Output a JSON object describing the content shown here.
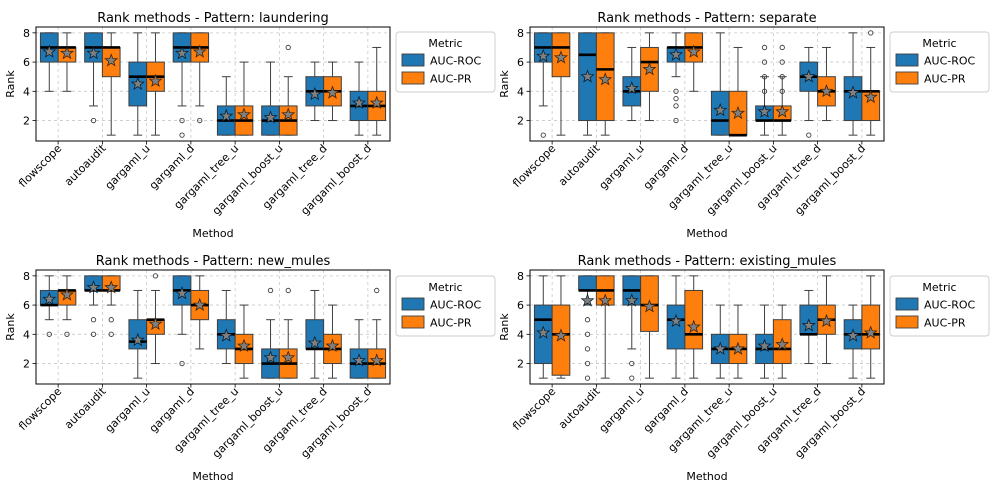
{
  "palette": {
    "roc": "#1f77b4",
    "pr": "#ff7f0e",
    "star": "#808080"
  },
  "chart_data": [
    {
      "type": "boxplot",
      "title": "Rank methods - Pattern: laundering",
      "xlabel": "Method",
      "ylabel": "Rank",
      "ylim": [
        0.6,
        8.4
      ],
      "yticks": [
        2,
        4,
        6,
        8
      ],
      "categories": [
        "flowscope",
        "autoaudit",
        "gargaml_u",
        "gargaml_d",
        "gargaml_tree_u",
        "gargaml_boost_u",
        "gargaml_tree_d",
        "gargaml_boost_d"
      ],
      "legend": {
        "title": "Metric",
        "entries": [
          "AUC-ROC",
          "AUC-PR"
        ]
      },
      "series": [
        {
          "name": "AUC-ROC",
          "color": "#1f77b4",
          "boxes": [
            {
              "wlo": 4,
              "q1": 6,
              "med": 7,
              "q3": 8,
              "whi": 8,
              "mean": 6.7,
              "out": []
            },
            {
              "wlo": 3,
              "q1": 6,
              "med": 7,
              "q3": 8,
              "whi": 8,
              "mean": 6.6,
              "out": [
                2
              ]
            },
            {
              "wlo": 1,
              "q1": 3,
              "med": 5,
              "q3": 6,
              "whi": 8,
              "mean": 4.5,
              "out": []
            },
            {
              "wlo": 3,
              "q1": 6,
              "med": 7,
              "q3": 8,
              "whi": 8,
              "mean": 6.6,
              "out": [
                2,
                1
              ]
            },
            {
              "wlo": 1,
              "q1": 1,
              "med": 2,
              "q3": 3,
              "whi": 5,
              "mean": 2.3,
              "out": []
            },
            {
              "wlo": 1,
              "q1": 1,
              "med": 2,
              "q3": 3,
              "whi": 6,
              "mean": 2.2,
              "out": []
            },
            {
              "wlo": 2,
              "q1": 3,
              "med": 4,
              "q3": 5,
              "whi": 6,
              "mean": 3.8,
              "out": []
            },
            {
              "wlo": 1,
              "q1": 2,
              "med": 3,
              "q3": 4,
              "whi": 6,
              "mean": 3.2,
              "out": []
            }
          ]
        },
        {
          "name": "AUC-PR",
          "color": "#ff7f0e",
          "boxes": [
            {
              "wlo": 4,
              "q1": 6,
              "med": 7,
              "q3": 7,
              "whi": 8,
              "mean": 6.6,
              "out": []
            },
            {
              "wlo": 1,
              "q1": 5,
              "med": 7,
              "q3": 7,
              "whi": 8,
              "mean": 6.1,
              "out": []
            },
            {
              "wlo": 1,
              "q1": 4,
              "med": 5,
              "q3": 6,
              "whi": 8,
              "mean": 4.7,
              "out": []
            },
            {
              "wlo": 3,
              "q1": 6,
              "med": 7,
              "q3": 8,
              "whi": 8,
              "mean": 6.7,
              "out": [
                2
              ]
            },
            {
              "wlo": 1,
              "q1": 1,
              "med": 2,
              "q3": 3,
              "whi": 6,
              "mean": 2.4,
              "out": []
            },
            {
              "wlo": 1,
              "q1": 1,
              "med": 2,
              "q3": 3,
              "whi": 5,
              "mean": 2.4,
              "out": [
                7
              ]
            },
            {
              "wlo": 2,
              "q1": 3,
              "med": 4,
              "q3": 5,
              "whi": 6,
              "mean": 3.9,
              "out": []
            },
            {
              "wlo": 1,
              "q1": 2,
              "med": 3,
              "q3": 4,
              "whi": 7,
              "mean": 3.2,
              "out": []
            }
          ]
        }
      ]
    },
    {
      "type": "boxplot",
      "title": "Rank methods - Pattern: separate",
      "xlabel": "Method",
      "ylabel": "Rank",
      "ylim": [
        0.6,
        8.4
      ],
      "yticks": [
        2,
        4,
        6,
        8
      ],
      "categories": [
        "flowscope",
        "autoaudit",
        "gargaml_u",
        "gargaml_d",
        "gargaml_tree_u",
        "gargaml_boost_u",
        "gargaml_tree_d",
        "gargaml_boost_d"
      ],
      "legend": {
        "title": "Metric",
        "entries": [
          "AUC-ROC",
          "AUC-PR"
        ]
      },
      "series": [
        {
          "name": "AUC-ROC",
          "color": "#1f77b4",
          "boxes": [
            {
              "wlo": 3,
              "q1": 6,
              "med": 7,
              "q3": 8,
              "whi": 8,
              "mean": 6.4,
              "out": [
                1
              ]
            },
            {
              "wlo": 1,
              "q1": 2,
              "med": 6.5,
              "q3": 8,
              "whi": 8,
              "mean": 5.0,
              "out": []
            },
            {
              "wlo": 2,
              "q1": 3,
              "med": 4,
              "q3": 5,
              "whi": 7,
              "mean": 4.2,
              "out": []
            },
            {
              "wlo": 5,
              "q1": 6,
              "med": 7,
              "q3": 7,
              "whi": 8,
              "mean": 6.5,
              "out": [
                4,
                3.5,
                3,
                2
              ]
            },
            {
              "wlo": 1,
              "q1": 1,
              "med": 2,
              "q3": 4,
              "whi": 8,
              "mean": 2.7,
              "out": []
            },
            {
              "wlo": 1,
              "q1": 2,
              "med": 2,
              "q3": 3,
              "whi": 5,
              "mean": 2.6,
              "out": [
                7,
                6,
                5,
                4
              ]
            },
            {
              "wlo": 2,
              "q1": 4,
              "med": 5,
              "q3": 6,
              "whi": 7,
              "mean": 5.0,
              "out": [
                1
              ]
            },
            {
              "wlo": 1,
              "q1": 2,
              "med": 4,
              "q3": 5,
              "whi": 8,
              "mean": 3.9,
              "out": []
            }
          ]
        },
        {
          "name": "AUC-PR",
          "color": "#ff7f0e",
          "boxes": [
            {
              "wlo": 1,
              "q1": 5,
              "med": 7,
              "q3": 8,
              "whi": 8,
              "mean": 6.3,
              "out": []
            },
            {
              "wlo": 1,
              "q1": 2,
              "med": 5.5,
              "q3": 8,
              "whi": 8,
              "mean": 4.8,
              "out": []
            },
            {
              "wlo": 2,
              "q1": 4,
              "med": 6,
              "q3": 7,
              "whi": 8,
              "mean": 5.5,
              "out": []
            },
            {
              "wlo": 4,
              "q1": 6,
              "med": 7,
              "q3": 8,
              "whi": 8,
              "mean": 6.7,
              "out": []
            },
            {
              "wlo": 1,
              "q1": 1,
              "med": 1,
              "q3": 4,
              "whi": 7,
              "mean": 2.5,
              "out": []
            },
            {
              "wlo": 1,
              "q1": 2,
              "med": 2,
              "q3": 3,
              "whi": 5,
              "mean": 2.6,
              "out": [
                7,
                6,
                5,
                4
              ]
            },
            {
              "wlo": 2,
              "q1": 3,
              "med": 4,
              "q3": 5,
              "whi": 7,
              "mean": 4.0,
              "out": []
            },
            {
              "wlo": 1,
              "q1": 2,
              "med": 4,
              "q3": 4,
              "whi": 7,
              "mean": 3.6,
              "out": [
                8
              ]
            }
          ]
        }
      ]
    },
    {
      "type": "boxplot",
      "title": "Rank methods - Pattern: new_mules",
      "xlabel": "Method",
      "ylabel": "Rank",
      "ylim": [
        0.6,
        8.4
      ],
      "yticks": [
        2,
        4,
        6,
        8
      ],
      "categories": [
        "flowscope",
        "autoaudit",
        "gargaml_u",
        "gargaml_d",
        "gargaml_tree_u",
        "gargaml_boost_u",
        "gargaml_tree_d",
        "gargaml_boost_d"
      ],
      "legend": {
        "title": "Metric",
        "entries": [
          "AUC-ROC",
          "AUC-PR"
        ]
      },
      "series": [
        {
          "name": "AUC-ROC",
          "color": "#1f77b4",
          "boxes": [
            {
              "wlo": 5,
              "q1": 6,
              "med": 6,
              "q3": 7,
              "whi": 8,
              "mean": 6.4,
              "out": [
                4
              ]
            },
            {
              "wlo": 6,
              "q1": 7,
              "med": 7,
              "q3": 8,
              "whi": 8,
              "mean": 7.2,
              "out": [
                5,
                4
              ]
            },
            {
              "wlo": 1,
              "q1": 3,
              "med": 3.5,
              "q3": 5,
              "whi": 7,
              "mean": 3.6,
              "out": []
            },
            {
              "wlo": 4,
              "q1": 6,
              "med": 7,
              "q3": 8,
              "whi": 8,
              "mean": 6.8,
              "out": [
                2
              ]
            },
            {
              "wlo": 2,
              "q1": 3,
              "med": 4,
              "q3": 5,
              "whi": 7,
              "mean": 3.9,
              "out": []
            },
            {
              "wlo": 1,
              "q1": 1,
              "med": 2,
              "q3": 3,
              "whi": 5,
              "mean": 2.4,
              "out": [
                7
              ]
            },
            {
              "wlo": 1,
              "q1": 3,
              "med": 3,
              "q3": 5,
              "whi": 7,
              "mean": 3.4,
              "out": []
            },
            {
              "wlo": 1,
              "q1": 1,
              "med": 2,
              "q3": 3,
              "whi": 5,
              "mean": 2.2,
              "out": []
            }
          ]
        },
        {
          "name": "AUC-PR",
          "color": "#ff7f0e",
          "boxes": [
            {
              "wlo": 5,
              "q1": 6,
              "med": 7,
              "q3": 7,
              "whi": 8,
              "mean": 6.7,
              "out": [
                4
              ]
            },
            {
              "wlo": 6,
              "q1": 7,
              "med": 7,
              "q3": 8,
              "whi": 8,
              "mean": 7.2,
              "out": [
                5,
                4
              ]
            },
            {
              "wlo": 2,
              "q1": 4,
              "med": 5,
              "q3": 5,
              "whi": 7,
              "mean": 4.7,
              "out": [
                8
              ]
            },
            {
              "wlo": 3,
              "q1": 5,
              "med": 6,
              "q3": 7,
              "whi": 8,
              "mean": 6.0,
              "out": []
            },
            {
              "wlo": 1,
              "q1": 2,
              "med": 3,
              "q3": 4,
              "whi": 6,
              "mean": 3.2,
              "out": []
            },
            {
              "wlo": 1,
              "q1": 1,
              "med": 2,
              "q3": 3,
              "whi": 5,
              "mean": 2.4,
              "out": [
                7
              ]
            },
            {
              "wlo": 1,
              "q1": 2,
              "med": 3,
              "q3": 4,
              "whi": 6,
              "mean": 3.2,
              "out": []
            },
            {
              "wlo": 1,
              "q1": 1,
              "med": 2,
              "q3": 3,
              "whi": 5,
              "mean": 2.2,
              "out": [
                7
              ]
            }
          ]
        }
      ]
    },
    {
      "type": "boxplot",
      "title": "Rank methods - Pattern: existing_mules",
      "xlabel": "Method",
      "ylabel": "Rank",
      "ylim": [
        0.6,
        8.4
      ],
      "yticks": [
        2,
        4,
        6,
        8
      ],
      "categories": [
        "flowscope",
        "autoaudit",
        "gargaml_u",
        "gargaml_d",
        "gargaml_tree_u",
        "gargaml_boost_u",
        "gargaml_tree_d",
        "gargaml_boost_d"
      ],
      "legend": {
        "title": "Metric",
        "entries": [
          "AUC-ROC",
          "AUC-PR"
        ]
      },
      "series": [
        {
          "name": "AUC-ROC",
          "color": "#1f77b4",
          "boxes": [
            {
              "wlo": 1,
              "q1": 2,
              "med": 5,
              "q3": 6,
              "whi": 8,
              "mean": 4.1,
              "out": []
            },
            {
              "wlo": 6,
              "q1": 7,
              "med": 7,
              "q3": 8,
              "whi": 8,
              "mean": 6.3,
              "out": [
                5,
                4,
                3,
                2,
                1
              ]
            },
            {
              "wlo": 3,
              "q1": 6,
              "med": 7,
              "q3": 8,
              "whi": 8,
              "mean": 6.3,
              "out": [
                2,
                1
              ]
            },
            {
              "wlo": 1,
              "q1": 3,
              "med": 5,
              "q3": 6,
              "whi": 8,
              "mean": 4.9,
              "out": []
            },
            {
              "wlo": 1,
              "q1": 2,
              "med": 3,
              "q3": 4,
              "whi": 6,
              "mean": 3.0,
              "out": []
            },
            {
              "wlo": 1,
              "q1": 2,
              "med": 3,
              "q3": 4,
              "whi": 6,
              "mean": 3.2,
              "out": []
            },
            {
              "wlo": 2,
              "q1": 4,
              "med": 4,
              "q3": 6,
              "whi": 7,
              "mean": 4.6,
              "out": []
            },
            {
              "wlo": 1,
              "q1": 3,
              "med": 4,
              "q3": 5,
              "whi": 6,
              "mean": 3.9,
              "out": []
            }
          ]
        },
        {
          "name": "AUC-PR",
          "color": "#ff7f0e",
          "boxes": [
            {
              "wlo": 1,
              "q1": 1.2,
              "med": 4,
              "q3": 6,
              "whi": 8,
              "mean": 3.9,
              "out": []
            },
            {
              "wlo": 1,
              "q1": 6,
              "med": 7,
              "q3": 8,
              "whi": 8,
              "mean": 6.3,
              "out": []
            },
            {
              "wlo": 1,
              "q1": 4.2,
              "med": 6,
              "q3": 8,
              "whi": 8,
              "mean": 5.9,
              "out": []
            },
            {
              "wlo": 1,
              "q1": 3,
              "med": 4,
              "q3": 7,
              "whi": 8,
              "mean": 4.5,
              "out": []
            },
            {
              "wlo": 1,
              "q1": 2,
              "med": 3,
              "q3": 4,
              "whi": 6,
              "mean": 3.0,
              "out": []
            },
            {
              "wlo": 1,
              "q1": 2,
              "med": 3,
              "q3": 5,
              "whi": 6,
              "mean": 3.3,
              "out": []
            },
            {
              "wlo": 2,
              "q1": 4,
              "med": 5,
              "q3": 6,
              "whi": 8,
              "mean": 4.9,
              "out": []
            },
            {
              "wlo": 1,
              "q1": 3,
              "med": 4,
              "q3": 6,
              "whi": 8,
              "mean": 4.1,
              "out": []
            }
          ]
        }
      ]
    }
  ]
}
